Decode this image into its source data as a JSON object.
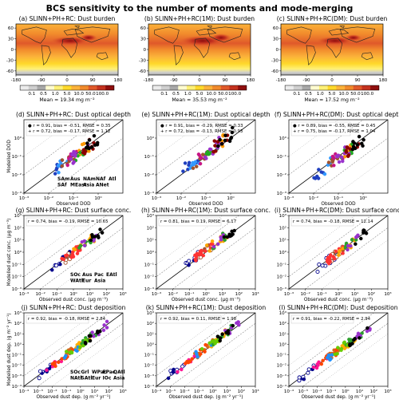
{
  "figure": {
    "title": "BCS sensitivity to the number of moments and mode-merging"
  },
  "map_row": {
    "panels": [
      {
        "title": "(a) SLINN+PH+RC: Dust burden",
        "mean": "Mean = 19.34 mg m⁻²"
      },
      {
        "title": "(b) SLINN+PH+RC(1M): Dust burden",
        "mean": "Mean = 35.53 mg m⁻²"
      },
      {
        "title": "(c) SLINN+PH+RC(DM): Dust burden",
        "mean": "Mean = 17.52 mg m⁻²"
      }
    ],
    "lat_ticks": [
      "60",
      "30",
      "0",
      "-30",
      "-60"
    ],
    "lon_ticks": [
      "-180",
      "-90",
      "0",
      "90",
      "180"
    ],
    "colorbar_ticks": [
      "0.1",
      "0.5",
      "1.0",
      "5.0",
      "10.0",
      "50.0",
      "100.0"
    ],
    "colorbar_colors": [
      "#ececec",
      "#cfcfcf",
      "#a8a8a8",
      "#fffbd0",
      "#fff176",
      "#ffd92b",
      "#fbb23a",
      "#f18a2c",
      "#e0592a",
      "#c4321f",
      "#8f0e0e"
    ]
  },
  "chart_data": [
    {
      "type": "scatter",
      "title": "(d) SLINN+PH+RC: Dust optical depth",
      "xlabel": "Observed DOD",
      "ylabel": "Modelled DOD",
      "xlog": true,
      "ylog": true,
      "xlim": [
        0.001,
        10
      ],
      "ylim": [
        0.001,
        10
      ],
      "xticks": [
        "10⁻³",
        "10⁻²",
        "10⁻¹",
        "10⁰"
      ],
      "yticks": [
        "10⁻³",
        "10⁻²",
        "10⁻¹",
        "10⁰"
      ],
      "stats": [
        "●  r = 0.91, bias = -0.51, RMSE = 0.35",
        "+  r = 0.72, bias = -0.17, RMSE = 1.12"
      ],
      "legend": [
        "SAm",
        "Aus",
        "NAm",
        "NAf",
        "Atl",
        "SAf",
        "MEast",
        "Asia",
        "ANet"
      ]
    },
    {
      "type": "scatter",
      "title": "(e) SLINN+PH+RC(1M): Dust optical depth",
      "xlabel": "Observed DOD",
      "ylabel": "",
      "xlog": true,
      "ylog": true,
      "xlim": [
        0.001,
        10
      ],
      "ylim": [
        0.001,
        10
      ],
      "xticks": [
        "10⁻³",
        "10⁻²",
        "10⁻¹",
        "10⁰"
      ],
      "yticks": [
        "10⁻³",
        "10⁻²",
        "10⁻¹",
        "10⁰"
      ],
      "stats": [
        "●  r = 0.91, bias = -0.29, RMSE = 0.33",
        "+  r = 0.72, bias = -0.13, RMSE = 0.93"
      ],
      "legend": []
    },
    {
      "type": "scatter",
      "title": "(f) SLINN+PH+RC(DM): Dust optical depth",
      "xlabel": "Observed DOD",
      "ylabel": "",
      "xlog": true,
      "ylog": true,
      "xlim": [
        0.001,
        10
      ],
      "ylim": [
        0.001,
        10
      ],
      "xticks": [
        "10⁻³",
        "10⁻²",
        "10⁻¹",
        "10⁰"
      ],
      "yticks": [
        "10⁻³",
        "10⁻²",
        "10⁻¹",
        "10⁰"
      ],
      "stats": [
        "●  r = 0.89, bias = -0.55, RMSE = 0.45",
        "+  r = 0.75, bias = -0.17, RMSE = 1.04"
      ],
      "legend": []
    },
    {
      "type": "scatter",
      "title": "(g) SLINN+PH+RC: Dust surface conc.",
      "xlabel": "Observed dust conc. (μg m⁻³)",
      "ylabel": "Modelled dust conc. (μg m⁻³)",
      "xlog": true,
      "ylog": true,
      "xlim": [
        0.001,
        1000
      ],
      "ylim": [
        0.001,
        1000
      ],
      "xticks": [
        "10⁻³",
        "10⁻²",
        "10⁻¹",
        "10⁰",
        "10¹",
        "10²",
        "10³"
      ],
      "yticks": [
        "10⁻³",
        "10⁻²",
        "10⁻¹",
        "10⁰",
        "10¹",
        "10²",
        "10³"
      ],
      "stats": [
        "r = 0.74, bias = -0.19, RMSE = 10.65"
      ],
      "legend": [
        "SOc",
        "Aus",
        "Pac",
        "EAtl",
        "WAtl",
        "Eur",
        "Asia"
      ]
    },
    {
      "type": "scatter",
      "title": "(h) SLINN+PH+RC(1M): Dust surface conc.",
      "xlabel": "Observed dust conc. (μg m⁻³)",
      "ylabel": "",
      "xlog": true,
      "ylog": true,
      "xlim": [
        0.001,
        1000
      ],
      "ylim": [
        0.001,
        1000
      ],
      "xticks": [
        "10⁻³",
        "10⁻²",
        "10⁻¹",
        "10⁰",
        "10¹",
        "10²",
        "10³"
      ],
      "yticks": [
        "10⁻³",
        "10⁻²",
        "10⁻¹",
        "10⁰",
        "10¹",
        "10²",
        "10³"
      ],
      "stats": [
        "r = 0.81, bias = 0.19, RMSE = 6.17"
      ],
      "legend": []
    },
    {
      "type": "scatter",
      "title": "(i) SLINN+PH+RC(DM): Dust surface conc.",
      "xlabel": "Observed dust conc. (μg m⁻³)",
      "ylabel": "",
      "xlog": true,
      "ylog": true,
      "xlim": [
        0.001,
        1000
      ],
      "ylim": [
        0.001,
        1000
      ],
      "xticks": [
        "10⁻³",
        "10⁻²",
        "10⁻¹",
        "10⁰",
        "10¹",
        "10²",
        "10³"
      ],
      "yticks": [
        "10⁻³",
        "10⁻²",
        "10⁻¹",
        "10⁰",
        "10¹",
        "10²",
        "10³"
      ],
      "stats": [
        "r = 0.74, bias = -0.18, RMSE = 12.14"
      ],
      "legend": []
    },
    {
      "type": "scatter",
      "title": "(j) SLINN+PH+RC: Dust deposition",
      "xlabel": "Observed dust dep. (g m⁻² yr⁻¹)",
      "ylabel": "Modelled dust dep. (g m⁻² yr⁻¹)",
      "xlog": true,
      "ylog": true,
      "xlim": [
        0.0001,
        1000
      ],
      "ylim": [
        0.0001,
        1000
      ],
      "xticks": [
        "10⁻⁴",
        "10⁻³",
        "10⁻²",
        "10⁻¹",
        "10⁰",
        "10¹",
        "10²",
        "10³"
      ],
      "yticks": [
        "10⁻⁴",
        "10⁻³",
        "10⁻²",
        "10⁻¹",
        "10⁰",
        "10¹",
        "10²",
        "10³"
      ],
      "stats": [
        "r = 0.92, bias = -0.18, RMSE = 2.84"
      ],
      "legend": [
        "SOc",
        "Grl",
        "WPac",
        "EPac",
        "QAtl",
        "NAtl",
        "SAtl",
        "Eur",
        "IOc",
        "Asia"
      ]
    },
    {
      "type": "scatter",
      "title": "(k) SLINN+PH+RC(1M): Dust deposition",
      "xlabel": "Observed dust dep. (g m⁻² yr⁻¹)",
      "ylabel": "",
      "xlog": true,
      "ylog": true,
      "xlim": [
        0.0001,
        1000
      ],
      "ylim": [
        0.0001,
        1000
      ],
      "xticks": [
        "10⁻⁴",
        "10⁻³",
        "10⁻²",
        "10⁻¹",
        "10⁰",
        "10¹",
        "10²",
        "10³"
      ],
      "yticks": [
        "10⁻⁴",
        "10⁻³",
        "10⁻²",
        "10⁻¹",
        "10⁰",
        "10¹",
        "10²",
        "10³"
      ],
      "stats": [
        "r = 0.92, bias = 0.11, RMSE = 1.98"
      ],
      "legend": []
    },
    {
      "type": "scatter",
      "title": "(l) SLINN+PH+RC(DM): Dust deposition",
      "xlabel": "Observed dust dep. (g m⁻² yr⁻¹)",
      "ylabel": "",
      "xlog": true,
      "ylog": true,
      "xlim": [
        0.0001,
        1000
      ],
      "ylim": [
        0.0001,
        1000
      ],
      "xticks": [
        "10⁻⁴",
        "10⁻³",
        "10⁻²",
        "10⁻¹",
        "10⁰",
        "10¹",
        "10²",
        "10³"
      ],
      "yticks": [
        "10⁻⁴",
        "10⁻³",
        "10⁻²",
        "10⁻¹",
        "10⁰",
        "10¹",
        "10²",
        "10³"
      ],
      "stats": [
        "r = 0.91, bias = -0.22, RMSE = 2.94"
      ],
      "legend": []
    }
  ],
  "region_colors": {
    "SAm": "#1f3fbf",
    "Aus": "#a0522d",
    "NAm": "#c71585",
    "NAf": "#8b0000",
    "Atl": "#ff9900",
    "SAf": "#3399ff",
    "MEast": "#22aa22",
    "Asia": "#9932cc",
    "ANet": "#000000",
    "SOc": "#00008b",
    "Pac": "#ff3333",
    "EAtl": "#000000",
    "WAtl": "#ffa500",
    "Eur": "#2ca02c",
    "Grl": "#ff1493",
    "WPac": "#d2691e",
    "EPac": "#ff4500",
    "QAtl": "#000000",
    "NAtl": "#ffb000",
    "SAtl": "#1e90ff",
    "IOc": "#66cc00"
  }
}
